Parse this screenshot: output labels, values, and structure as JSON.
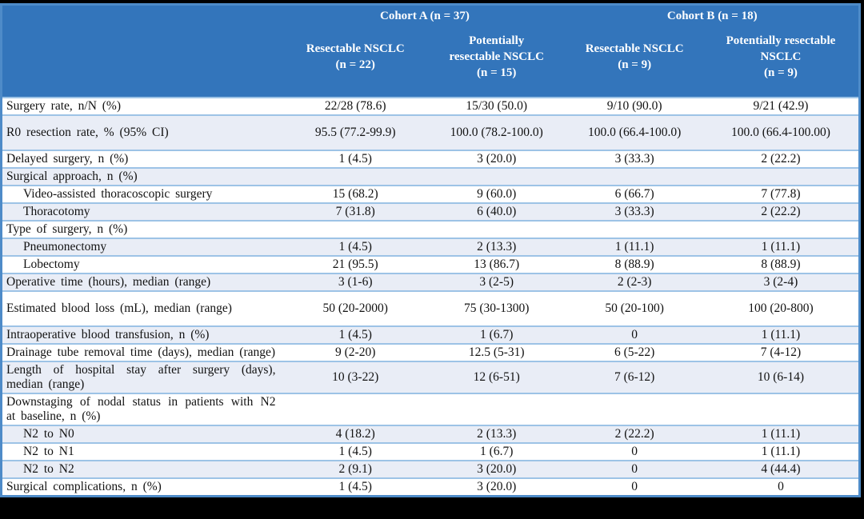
{
  "table": {
    "groups": [
      {
        "label": "Cohort A (n = 37)"
      },
      {
        "label": "Cohort B (n = 18)"
      }
    ],
    "columns": [
      {
        "name": "cohort-a-resectable",
        "lines": [
          "Resectable NSCLC",
          "(n = 22)"
        ]
      },
      {
        "name": "cohort-a-potentially-resectable",
        "lines": [
          "Potentially",
          "resectable NSCLC",
          "(n = 15)"
        ]
      },
      {
        "name": "cohort-b-resectable",
        "lines": [
          "Resectable NSCLC",
          "(n = 9)"
        ]
      },
      {
        "name": "cohort-b-potentially-resectable",
        "lines": [
          "Potentially resectable",
          "NSCLC",
          "(n = 9)"
        ]
      }
    ],
    "rows": [
      {
        "label": "Surgery rate, n/N (%)",
        "indent": false,
        "values": [
          "22/28 (78.6)",
          "15/30 (50.0)",
          "9/10 (90.0)",
          "9/21 (42.9)"
        ]
      },
      {
        "label": "R0 resection rate, % (95% CI)",
        "indent": false,
        "values": [
          "95.5 (77.2-99.9)",
          "100.0 (78.2-100.0)",
          "100.0 (66.4-100.0)",
          "100.0 (66.4-100.00)"
        ]
      },
      {
        "label": "Delayed surgery, n (%)",
        "indent": false,
        "values": [
          "1 (4.5)",
          "3 (20.0)",
          "3 (33.3)",
          "2 (22.2)"
        ]
      },
      {
        "label": "Surgical approach, n (%)",
        "indent": false,
        "values": [
          "",
          "",
          "",
          ""
        ]
      },
      {
        "label": "Video-assisted thoracoscopic surgery",
        "indent": true,
        "values": [
          "15 (68.2)",
          "9 (60.0)",
          "6 (66.7)",
          "7 (77.8)"
        ]
      },
      {
        "label": "Thoracotomy",
        "indent": true,
        "values": [
          "7 (31.8)",
          "6 (40.0)",
          "3 (33.3)",
          "2 (22.2)"
        ]
      },
      {
        "label": "Type of surgery, n (%)",
        "indent": false,
        "values": [
          "",
          "",
          "",
          ""
        ]
      },
      {
        "label": "Pneumonectomy",
        "indent": true,
        "values": [
          "1 (4.5)",
          "2 (13.3)",
          "1 (11.1)",
          "1 (11.1)"
        ]
      },
      {
        "label": "Lobectomy",
        "indent": true,
        "values": [
          "21 (95.5)",
          "13 (86.7)",
          "8 (88.9)",
          "8 (88.9)"
        ]
      },
      {
        "label": "Operative time (hours), median (range)",
        "indent": false,
        "values": [
          "3 (1-6)",
          "3 (2-5)",
          "2 (2-3)",
          "3 (2-4)"
        ]
      },
      {
        "label": "Estimated blood loss (mL), median (range)",
        "indent": false,
        "values": [
          "50 (20-2000)",
          "75 (30-1300)",
          "50 (20-100)",
          "100 (20-800)"
        ]
      },
      {
        "label": "Intraoperative blood transfusion, n (%)",
        "indent": false,
        "values": [
          "1 (4.5)",
          "1 (6.7)",
          "0",
          "1 (11.1)"
        ]
      },
      {
        "label": "Drainage tube removal time (days), median (range)",
        "indent": false,
        "values": [
          "9 (2-20)",
          "12.5 (5-31)",
          "6 (5-22)",
          "7 (4-12)"
        ]
      },
      {
        "label": "Length of hospital stay after surgery (days), median (range)",
        "indent": false,
        "values": [
          "10 (3-22)",
          "12 (6-51)",
          "7 (6-12)",
          "10 (6-14)"
        ]
      },
      {
        "label": "Downstaging of nodal status in patients with N2 at baseline, n (%)",
        "indent": false,
        "values": [
          "",
          "",
          "",
          ""
        ]
      },
      {
        "label": "N2 to N0",
        "indent": true,
        "values": [
          "4 (18.2)",
          "2 (13.3)",
          "2 (22.2)",
          "1 (11.1)"
        ]
      },
      {
        "label": "N2 to N1",
        "indent": true,
        "values": [
          "1 (4.5)",
          "1 (6.7)",
          "0",
          "1 (11.1)"
        ]
      },
      {
        "label": "N2 to N2",
        "indent": true,
        "values": [
          "2 (9.1)",
          "3 (20.0)",
          "0",
          "4 (44.4)"
        ]
      },
      {
        "label": "Surgical complications, n (%)",
        "indent": false,
        "values": [
          "1 (4.5)",
          "3 (20.0)",
          "0",
          "0"
        ]
      }
    ],
    "colors": {
      "header_bg": "#3375BB",
      "header_text": "#FFFFFF",
      "row_alt_bg": "#E9EDF6",
      "row_bg": "#FFFFFF",
      "inner_border": "#9DC3E6",
      "outer_border": "#4E8BC8",
      "frame_bar": "#000000"
    }
  }
}
